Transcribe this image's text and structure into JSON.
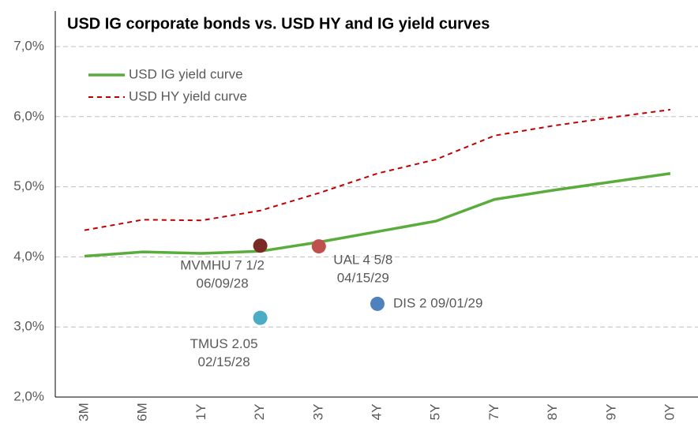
{
  "chart_data": {
    "type": "line",
    "title": "USD IG corporate bonds vs. USD HY and IG yield curves",
    "categories": [
      "3M",
      "6M",
      "1Y",
      "2Y",
      "3Y",
      "4Y",
      "5Y",
      "7Y",
      "8Y",
      "9Y",
      "0Y"
    ],
    "series": [
      {
        "name": "USD IG yield curve",
        "color": "#5aac3c",
        "style": "solid",
        "values": [
          4.01,
          4.07,
          4.05,
          4.08,
          4.21,
          4.36,
          4.51,
          4.82,
          4.95,
          5.07,
          5.19
        ]
      },
      {
        "name": "USD HY yield curve",
        "color": "#c00000",
        "style": "dashed",
        "values": [
          4.38,
          4.53,
          4.52,
          4.66,
          4.91,
          5.19,
          5.39,
          5.73,
          5.87,
          5.99,
          6.1
        ]
      }
    ],
    "points": [
      {
        "label": [
          "MVMHU 7 1/2",
          "06/09/28"
        ],
        "category": "2Y",
        "value": 4.16,
        "color": "#7b2a26"
      },
      {
        "label": [
          "UAL 4 5/8",
          "04/15/29"
        ],
        "category": "3Y",
        "value": 4.15,
        "color": "#c0504d"
      },
      {
        "label": [
          "DIS 2 09/01/29"
        ],
        "category": "4Y",
        "value": 3.33,
        "color": "#4f81bd"
      },
      {
        "label": [
          "TMUS 2.05",
          "02/15/28"
        ],
        "category": "2Y",
        "value": 3.13,
        "color": "#4bacc6"
      }
    ],
    "ylim": [
      2,
      7
    ],
    "yticks": [
      {
        "value": 2,
        "label": "2,0%"
      },
      {
        "value": 3,
        "label": "3,0%"
      },
      {
        "value": 4,
        "label": "4,0%"
      },
      {
        "value": 5,
        "label": "5,0%"
      },
      {
        "value": 6,
        "label": "6,0%"
      },
      {
        "value": 7,
        "label": "7,0%"
      }
    ],
    "grid": true
  }
}
